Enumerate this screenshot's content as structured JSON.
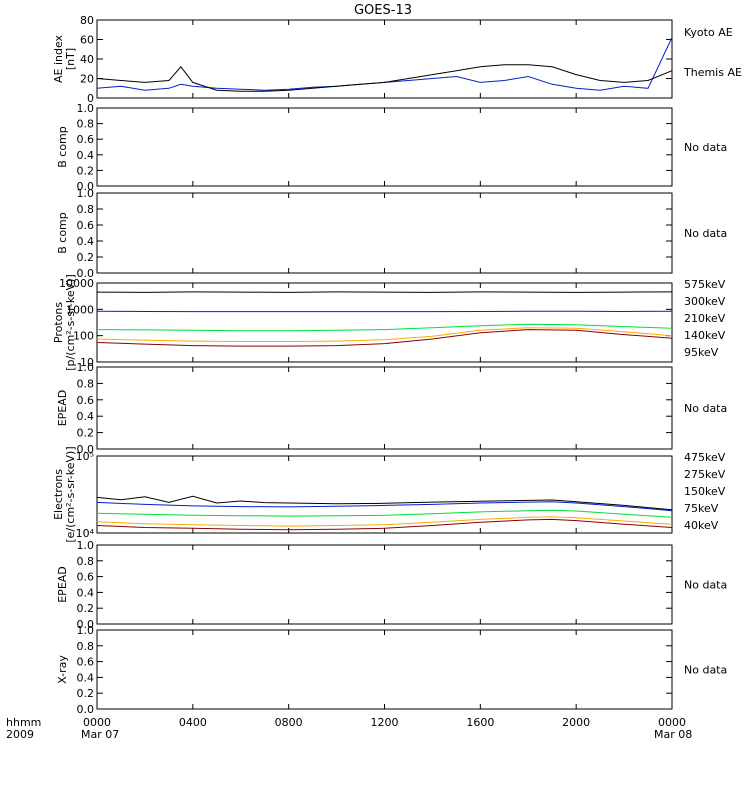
{
  "title": "GOES-13",
  "colors": {
    "black": "#000000",
    "blue": "#0022cc",
    "green": "#00e040",
    "orange": "#ffaa00",
    "darkred": "#8b0000",
    "brown_label": "#a01010"
  },
  "bottom": {
    "left_label_1": "hhmm",
    "left_label_2": "2009",
    "date_start": "Mar 07",
    "date_end": "Mar 08",
    "xticks": [
      "0000",
      "0400",
      "0800",
      "1200",
      "1600",
      "2000",
      "0000"
    ]
  },
  "chart_data": [
    {
      "type": "line",
      "ylabel": "AE index\n[nT]",
      "ylim": [
        0,
        80
      ],
      "yscale": "linear",
      "yticks": [
        "0",
        "20",
        "40",
        "60",
        "80"
      ],
      "series": [
        {
          "name": "Kyoto AE",
          "color": "blue",
          "x": [
            0,
            1,
            2,
            3,
            3.5,
            4,
            5,
            6,
            7,
            8,
            9,
            10,
            11,
            12,
            13,
            14,
            15,
            16,
            17,
            18,
            19,
            20,
            21,
            22,
            23,
            24
          ],
          "y": [
            10,
            12,
            8,
            10,
            14,
            12,
            10,
            9,
            8,
            9,
            11,
            12,
            14,
            16,
            18,
            20,
            22,
            16,
            18,
            22,
            14,
            10,
            8,
            12,
            10,
            62
          ]
        },
        {
          "name": "Themis AE",
          "color": "black",
          "x": [
            0,
            1,
            2,
            3,
            3.5,
            4,
            5,
            6,
            7,
            8,
            9,
            10,
            11,
            12,
            13,
            14,
            15,
            16,
            17,
            18,
            19,
            20,
            21,
            22,
            23,
            24
          ],
          "y": [
            20,
            18,
            16,
            18,
            32,
            16,
            8,
            7,
            7,
            8,
            10,
            12,
            14,
            16,
            20,
            24,
            28,
            32,
            34,
            34,
            32,
            24,
            18,
            16,
            18,
            28
          ]
        }
      ]
    },
    {
      "type": "line",
      "ylabel": "B comp",
      "ylim": [
        0,
        1
      ],
      "yscale": "linear",
      "yticks": [
        "0.0",
        "0.2",
        "0.4",
        "0.6",
        "0.8",
        "1.0"
      ],
      "series": [],
      "note": "No data"
    },
    {
      "type": "line",
      "ylabel": "B comp",
      "ylim": [
        0,
        1
      ],
      "yscale": "linear",
      "yticks": [
        "0.0",
        "0.2",
        "0.4",
        "0.6",
        "0.8",
        "1.0"
      ],
      "series": [],
      "note": "No data"
    },
    {
      "type": "line",
      "ylabel": "Protons\n[p/(cm²-s-sr-keV)]",
      "ylim": [
        10,
        10000
      ],
      "yscale": "log",
      "yticks": [
        "10",
        "100",
        "1000",
        "10000"
      ],
      "series": [
        {
          "name": "575keV",
          "color": "darkred",
          "labelColor": "brown_label",
          "x": [
            0,
            2,
            4,
            6,
            8,
            10,
            12,
            14,
            16,
            18,
            20,
            22,
            24
          ],
          "y": [
            55,
            48,
            42,
            40,
            40,
            42,
            50,
            75,
            130,
            170,
            160,
            110,
            80
          ]
        },
        {
          "name": "300keV",
          "color": "orange",
          "x": [
            0,
            2,
            4,
            6,
            8,
            10,
            12,
            14,
            16,
            18,
            20,
            22,
            24
          ],
          "y": [
            75,
            68,
            62,
            60,
            60,
            62,
            70,
            95,
            160,
            200,
            190,
            140,
            100
          ]
        },
        {
          "name": "210keV",
          "color": "green",
          "x": [
            0,
            2,
            4,
            6,
            8,
            10,
            12,
            14,
            16,
            18,
            20,
            22,
            24
          ],
          "y": [
            170,
            165,
            160,
            155,
            155,
            160,
            170,
            200,
            240,
            270,
            260,
            220,
            190
          ]
        },
        {
          "name": "140keV",
          "color": "blue",
          "x": [
            0,
            2,
            4,
            6,
            8,
            10,
            12,
            14,
            16,
            18,
            20,
            22,
            24
          ],
          "y": [
            850,
            830,
            820,
            820,
            820,
            820,
            820,
            820,
            830,
            840,
            840,
            830,
            850
          ]
        },
        {
          "name": "95keV",
          "color": "black",
          "x": [
            0,
            2,
            4,
            6,
            8,
            10,
            12,
            14,
            16,
            18,
            20,
            22,
            24
          ],
          "y": [
            4500,
            4400,
            4600,
            4500,
            4400,
            4600,
            4500,
            4400,
            4600,
            4500,
            4400,
            4500,
            4600
          ]
        }
      ]
    },
    {
      "type": "line",
      "ylabel": "EPEAD",
      "ylim": [
        0,
        1
      ],
      "yscale": "linear",
      "yticks": [
        "0.0",
        "0.2",
        "0.4",
        "0.6",
        "0.8",
        "1.0"
      ],
      "series": [],
      "note": "No data"
    },
    {
      "type": "line",
      "ylabel": "Electrons\n[e/(cm²-s-sr-keV)]",
      "ylim": [
        10000,
        100000
      ],
      "yscale": "log",
      "yticks": [
        "10⁴",
        "10⁵"
      ],
      "series": [
        {
          "name": "475keV",
          "color": "darkred",
          "labelColor": "brown_label",
          "x": [
            0,
            2,
            4,
            6,
            8,
            10,
            12,
            14,
            16,
            18,
            19,
            20,
            22,
            24
          ],
          "y": [
            12500,
            11800,
            11500,
            11200,
            11000,
            11200,
            11500,
            12500,
            13800,
            14800,
            15000,
            14500,
            13000,
            11800
          ]
        },
        {
          "name": "275keV",
          "color": "orange",
          "x": [
            0,
            2,
            4,
            6,
            8,
            10,
            12,
            14,
            16,
            18,
            19,
            20,
            22,
            24
          ],
          "y": [
            14000,
            13200,
            12800,
            12500,
            12300,
            12500,
            12800,
            13800,
            15000,
            16000,
            16200,
            15800,
            14300,
            13000
          ]
        },
        {
          "name": "150keV",
          "color": "green",
          "x": [
            0,
            2,
            4,
            6,
            8,
            10,
            12,
            14,
            16,
            18,
            19,
            20,
            22,
            24
          ],
          "y": [
            18000,
            17500,
            17000,
            16800,
            16600,
            16800,
            17000,
            17800,
            18800,
            19500,
            19800,
            19300,
            17500,
            16000
          ]
        },
        {
          "name": "75keV",
          "color": "blue",
          "x": [
            0,
            2,
            4,
            6,
            8,
            10,
            12,
            14,
            16,
            18,
            19,
            20,
            22,
            24
          ],
          "y": [
            25000,
            23500,
            22500,
            22000,
            21800,
            22200,
            22800,
            23500,
            24500,
            25200,
            25500,
            24500,
            22000,
            19500
          ]
        },
        {
          "name": "40keV",
          "color": "black",
          "x": [
            0,
            1,
            2,
            3,
            4,
            5,
            6,
            7,
            8,
            10,
            12,
            14,
            16,
            18,
            19,
            20,
            22,
            24
          ],
          "y": [
            29000,
            27000,
            29500,
            25000,
            30000,
            24500,
            26000,
            24800,
            24500,
            24000,
            24300,
            25200,
            25800,
            26500,
            26800,
            25500,
            22800,
            20000
          ]
        }
      ]
    },
    {
      "type": "line",
      "ylabel": "EPEAD",
      "ylim": [
        0,
        1
      ],
      "yscale": "linear",
      "yticks": [
        "0.0",
        "0.2",
        "0.4",
        "0.6",
        "0.8",
        "1.0"
      ],
      "series": [],
      "note": "No data"
    },
    {
      "type": "line",
      "ylabel": "X-ray",
      "ylim": [
        0,
        1
      ],
      "yscale": "linear",
      "yticks": [
        "0.0",
        "0.2",
        "0.4",
        "0.6",
        "0.8",
        "1.0"
      ],
      "series": [],
      "note": "No data"
    }
  ]
}
